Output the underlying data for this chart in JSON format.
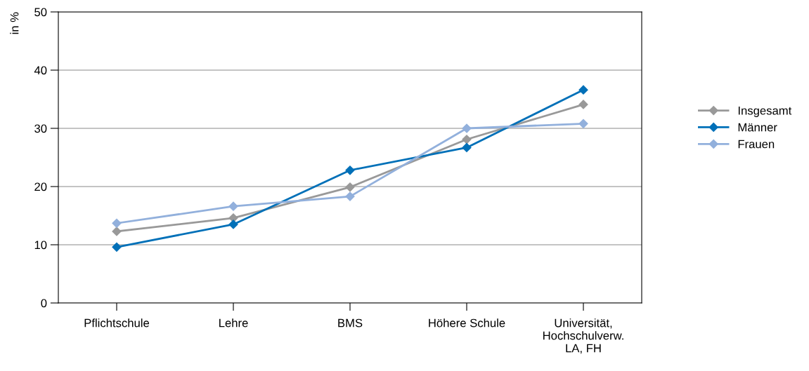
{
  "chart_data": {
    "type": "line",
    "ylabel": "in %",
    "categories": [
      "Pflichtschule",
      "Lehre",
      "BMS",
      "Höhere Schule",
      "Universität,\nHochschulverw.\nLA, FH"
    ],
    "series": [
      {
        "name": "Insgesamt",
        "color": "#999999",
        "values": [
          12.3,
          14.6,
          19.9,
          28.1,
          34.1
        ]
      },
      {
        "name": "Männer",
        "color": "#0070b8",
        "values": [
          9.6,
          13.5,
          22.8,
          26.7,
          36.6
        ]
      },
      {
        "name": "Frauen",
        "color": "#92b0dc",
        "values": [
          13.7,
          16.6,
          18.3,
          30.0,
          30.8
        ]
      }
    ],
    "ylim": [
      0,
      50
    ],
    "yticks": [
      0,
      10,
      20,
      30,
      40,
      50
    ],
    "grid": "y",
    "legend": "right",
    "marker": "diamond",
    "line_style": "solid"
  }
}
